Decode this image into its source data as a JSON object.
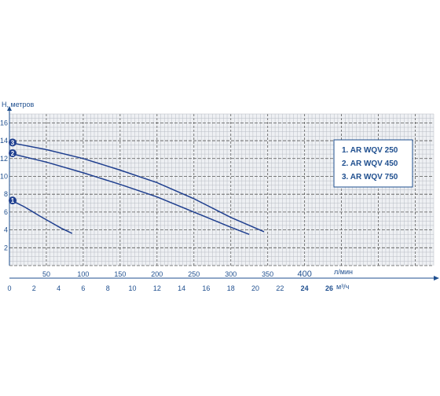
{
  "chart_data": {
    "type": "line",
    "ylabel": "H, метров",
    "xlabel": "л/мин",
    "x2label": "м³/ч",
    "xlim": [
      0,
      575
    ],
    "ylim": [
      0,
      17
    ],
    "yticks": [
      2,
      4,
      6,
      8,
      10,
      12,
      14,
      16
    ],
    "xticks": [
      "50",
      "100",
      "150",
      "200",
      "250",
      "300",
      "350",
      "400"
    ],
    "x2ticks": [
      "0",
      "2",
      "4",
      "6",
      "8",
      "10",
      "12",
      "14",
      "16",
      "18",
      "20",
      "22",
      "24",
      "26"
    ],
    "grid": true,
    "legend_position": "right",
    "series": [
      {
        "name": "1. AR WQV 250",
        "marker": "1",
        "color": "#1f3f8f",
        "x": [
          0,
          10,
          20,
          30,
          40,
          55,
          70,
          85
        ],
        "y": [
          7.3,
          7.0,
          6.6,
          6.1,
          5.6,
          4.9,
          4.2,
          3.6
        ]
      },
      {
        "name": "2. AR WQV 450",
        "marker": "2",
        "color": "#1f3f8f",
        "x": [
          0,
          50,
          100,
          150,
          200,
          250,
          300,
          325
        ],
        "y": [
          12.6,
          11.6,
          10.4,
          9.1,
          7.7,
          6.0,
          4.3,
          3.5
        ]
      },
      {
        "name": "3. AR WQV 750",
        "marker": "3",
        "color": "#1f3f8f",
        "x": [
          0,
          50,
          100,
          150,
          200,
          250,
          300,
          345
        ],
        "y": [
          13.8,
          13.0,
          12.0,
          10.7,
          9.3,
          7.5,
          5.4,
          3.8
        ]
      }
    ]
  }
}
